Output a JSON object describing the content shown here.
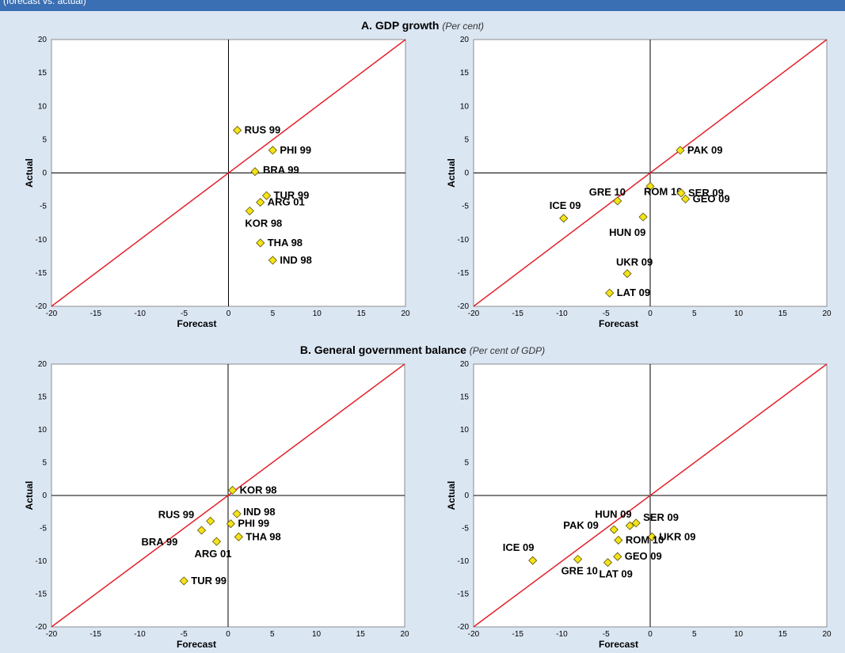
{
  "header": {
    "text": "(forecast vs. actual)"
  },
  "sections": {
    "a": {
      "title": "A. GDP growth",
      "subtitle": "(Per cent)"
    },
    "b": {
      "title": "B. General government balance",
      "subtitle": "(Per cent of GDP)"
    }
  },
  "colors": {
    "diagonal": "#e3202a",
    "marker": "#f5e31a",
    "marker_stroke": "#5a5200",
    "axis": "#000000",
    "background": "#dbe6f3",
    "panel": "#ffffff",
    "topbar": "#3b6fb3"
  },
  "chart_data": [
    {
      "type": "scatter",
      "xlabel": "Forecast",
      "ylabel": "Actual",
      "xlim": [
        -20,
        20
      ],
      "ylim": [
        -20,
        20
      ],
      "xticks": [
        -20,
        -15,
        -10,
        -5,
        0,
        5,
        10,
        15,
        20
      ],
      "yticks": [
        -20,
        -15,
        -10,
        -5,
        0,
        5,
        10,
        15,
        20
      ],
      "reference_line": "45-degree",
      "grid": false,
      "points": [
        {
          "label": "RUS 99",
          "x": 1.0,
          "y": 6.4
        },
        {
          "label": "PHI 99",
          "x": 5.0,
          "y": 3.4
        },
        {
          "label": "BRA 99",
          "x": 3.0,
          "y": 0.2
        },
        {
          "label": "TUR 99",
          "x": 4.3,
          "y": -3.4
        },
        {
          "label": "ARG 01",
          "x": 3.6,
          "y": -4.4
        },
        {
          "label": "KOR 98",
          "x": 2.4,
          "y": -5.7
        },
        {
          "label": "THA 98",
          "x": 3.6,
          "y": -10.5
        },
        {
          "label": "IND 98",
          "x": 5.0,
          "y": -13.1
        }
      ]
    },
    {
      "type": "scatter",
      "xlabel": "Forecast",
      "ylabel": "Actual",
      "xlim": [
        -20,
        20
      ],
      "ylim": [
        -20,
        20
      ],
      "xticks": [
        -20,
        -15,
        -10,
        -5,
        0,
        5,
        10,
        15,
        20
      ],
      "yticks": [
        -20,
        -15,
        -10,
        -5,
        0,
        5,
        10,
        15,
        20
      ],
      "reference_line": "45-degree",
      "grid": false,
      "points": [
        {
          "label": "PAK 09",
          "x": 3.4,
          "y": 3.4
        },
        {
          "label": "ROM 10",
          "x": 0.0,
          "y": -2.0
        },
        {
          "label": "GRE 10",
          "x": -3.7,
          "y": -4.2
        },
        {
          "label": "SER 09",
          "x": 3.5,
          "y": -3.0
        },
        {
          "label": "GEO 09",
          "x": 4.0,
          "y": -3.9
        },
        {
          "label": "ICE 09",
          "x": -9.8,
          "y": -6.8
        },
        {
          "label": "HUN 09",
          "x": -0.8,
          "y": -6.6
        },
        {
          "label": "UKR 09",
          "x": -2.6,
          "y": -15.1
        },
        {
          "label": "LAT 09",
          "x": -4.6,
          "y": -18.0
        }
      ]
    },
    {
      "type": "scatter",
      "xlabel": "Forecast",
      "ylabel": "Actual",
      "xlim": [
        -20,
        20
      ],
      "ylim": [
        -20,
        20
      ],
      "xticks": [
        -20,
        -15,
        -10,
        -5,
        0,
        5,
        10,
        15,
        20
      ],
      "yticks": [
        -20,
        -15,
        -10,
        -5,
        0,
        5,
        10,
        15,
        20
      ],
      "reference_line": "45-degree",
      "grid": false,
      "points": [
        {
          "label": "KOR 98",
          "x": 0.5,
          "y": 0.8
        },
        {
          "label": "IND 98",
          "x": 1.0,
          "y": -2.8
        },
        {
          "label": "RUS 99",
          "x": -2.0,
          "y": -3.9
        },
        {
          "label": "PHI 99",
          "x": 0.3,
          "y": -4.3
        },
        {
          "label": "BRA 99",
          "x": -3.0,
          "y": -5.3
        },
        {
          "label": "THA 98",
          "x": 1.2,
          "y": -6.3
        },
        {
          "label": "ARG 01",
          "x": -1.3,
          "y": -7.0
        },
        {
          "label": "TUR 99",
          "x": -5.0,
          "y": -13.0
        }
      ]
    },
    {
      "type": "scatter",
      "xlabel": "Forecast",
      "ylabel": "Actual",
      "xlim": [
        -20,
        20
      ],
      "ylim": [
        -20,
        20
      ],
      "xticks": [
        -20,
        -15,
        -10,
        -5,
        0,
        5,
        10,
        15,
        20
      ],
      "yticks": [
        -20,
        -15,
        -10,
        -5,
        0,
        5,
        10,
        15,
        20
      ],
      "reference_line": "45-degree",
      "grid": false,
      "points": [
        {
          "label": "HUN 09",
          "x": -2.3,
          "y": -4.6
        },
        {
          "label": "SER 09",
          "x": -1.6,
          "y": -4.2
        },
        {
          "label": "PAK 09",
          "x": -4.1,
          "y": -5.2
        },
        {
          "label": "UKR 09",
          "x": 0.2,
          "y": -6.3
        },
        {
          "label": "ROM 10",
          "x": -3.6,
          "y": -6.8
        },
        {
          "label": "ICE 09",
          "x": -13.3,
          "y": -9.9
        },
        {
          "label": "GRE 10",
          "x": -8.2,
          "y": -9.7
        },
        {
          "label": "GEO 09",
          "x": -3.7,
          "y": -9.3
        },
        {
          "label": "LAT 09",
          "x": -4.8,
          "y": -10.2
        }
      ]
    }
  ]
}
